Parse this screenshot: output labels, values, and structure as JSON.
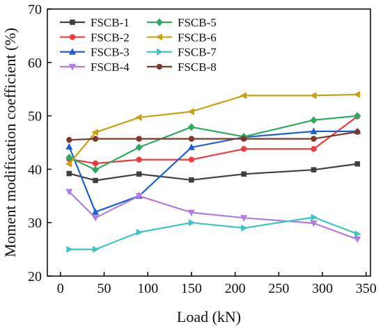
{
  "chart_data": {
    "type": "line",
    "title": "",
    "xlabel": "Load (kN)",
    "ylabel": "Moment modification coefficient (%)",
    "xlim": [
      -15,
      355
    ],
    "ylim": [
      20,
      70
    ],
    "xticks": [
      0,
      50,
      100,
      150,
      200,
      250,
      300,
      350
    ],
    "yticks": [
      20,
      30,
      40,
      50,
      60,
      70
    ],
    "x_tick_labels": [
      "0",
      "50",
      "100",
      "150",
      "200",
      "250",
      "300",
      "350"
    ],
    "y_tick_labels": [
      "20",
      "30",
      "40",
      "50",
      "60",
      "70"
    ],
    "grid": false,
    "legend_placement": "top-left",
    "x": [
      10,
      40,
      90,
      150,
      210,
      290,
      340
    ],
    "series": [
      {
        "name": "FSCB-1",
        "color": "#404040",
        "marker": "square",
        "values": [
          39.2,
          37.9,
          39.1,
          38.0,
          39.1,
          39.9,
          41.0
        ]
      },
      {
        "name": "FSCB-2",
        "color": "#ee3b3b",
        "marker": "circle",
        "values": [
          41.9,
          41.1,
          41.8,
          41.8,
          43.8,
          43.8,
          49.9
        ]
      },
      {
        "name": "FSCB-3",
        "color": "#1f5fcc",
        "marker": "triangle-up",
        "values": [
          44.2,
          32.0,
          35.0,
          44.1,
          46.0,
          47.1,
          47.1
        ]
      },
      {
        "name": "FSCB-4",
        "color": "#b07ce0",
        "marker": "triangle-down",
        "values": [
          35.8,
          30.9,
          35.0,
          31.9,
          30.9,
          29.9,
          26.9
        ]
      },
      {
        "name": "FSCB-5",
        "color": "#2eaa5e",
        "marker": "diamond",
        "values": [
          42.2,
          39.9,
          44.1,
          47.9,
          46.1,
          49.2,
          50.0
        ]
      },
      {
        "name": "FSCB-6",
        "color": "#c8a216",
        "marker": "triangle-left",
        "values": [
          41.0,
          46.9,
          49.7,
          50.8,
          53.8,
          53.8,
          54.0
        ]
      },
      {
        "name": "FSCB-7",
        "color": "#3ec4c4",
        "marker": "triangle-right",
        "values": [
          25.0,
          25.0,
          28.2,
          30.0,
          29.0,
          31.0,
          27.9
        ]
      },
      {
        "name": "FSCB-8",
        "color": "#7a3b2e",
        "marker": "circle",
        "values": [
          45.5,
          45.7,
          45.7,
          45.7,
          45.7,
          45.7,
          47.0
        ]
      }
    ]
  }
}
